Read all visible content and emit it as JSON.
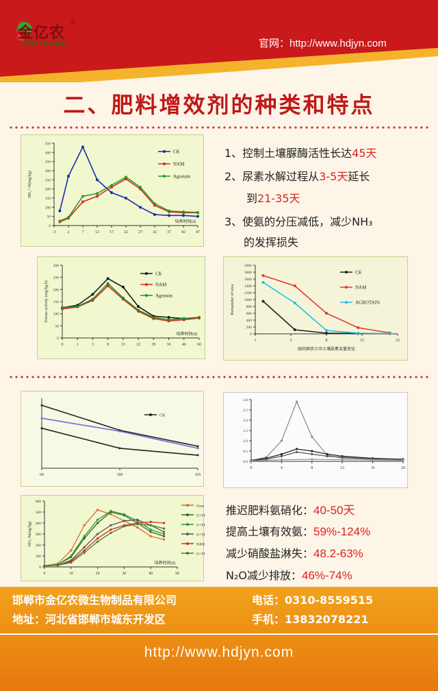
{
  "header": {
    "logo_cn": "金亿农",
    "logo_en": "JINYINONG",
    "logo_reg": "®",
    "official": "官网：http://www.hdjyn.com",
    "colors": {
      "red": "#c9191b",
      "yellow": "#f4b32a"
    }
  },
  "title": "二、肥料增效剂的种类和特点",
  "notes": [
    {
      "text": "1、控制土壤脲酶活性长达",
      "hl": "45天"
    },
    {
      "text": "2、尿素水解过程从",
      "hl": "3-5天",
      "after": "延长"
    },
    {
      "text": "",
      "hl": "21-35天",
      "pre": "到"
    },
    {
      "text": "3、使氨的分压减低，减少NH₃"
    },
    {
      "text": "的发挥损失"
    }
  ],
  "effects": [
    {
      "label": "推迟肥料氨硝化：",
      "value": "40-50天"
    },
    {
      "label": "提高土壤有效氨：",
      "value": "59%-124%"
    },
    {
      "label": "减少硝酸盐淋失：",
      "value": "48.2-63%"
    },
    {
      "label": "N₂O减少排放：",
      "value": "46%-74%"
    }
  ],
  "footer": {
    "company": "邯郸市金亿农微生物制品有限公司",
    "phone": "电话：0310-8559515",
    "address": "地址：河北省邯郸市城东开发区",
    "mobile": "手机：13832078221",
    "url": "http://www.hdjyn.com",
    "colors": {
      "bg": "#ee8c14"
    }
  },
  "chart_data": [
    {
      "type": "line",
      "ylabel": "NH₄⁺-N(mg/kg)",
      "xlabel": "培养时间(d)",
      "x": [
        -3,
        2,
        7,
        12,
        17,
        22,
        27,
        32,
        37,
        42,
        47
      ],
      "ylim": [
        0,
        450
      ],
      "series": [
        {
          "name": "CK",
          "color": "#1a2aa8",
          "points": [
            [
              -1,
              80
            ],
            [
              2,
              270
            ],
            [
              7,
              430
            ],
            [
              12,
              250
            ],
            [
              17,
              180
            ],
            [
              22,
              150
            ],
            [
              27,
              100
            ],
            [
              32,
              60
            ],
            [
              37,
              55
            ],
            [
              42,
              55
            ],
            [
              47,
              50
            ]
          ]
        },
        {
          "name": "NAM",
          "color": "#d82a20",
          "points": [
            [
              -1,
              20
            ],
            [
              2,
              40
            ],
            [
              7,
              130
            ],
            [
              12,
              160
            ],
            [
              17,
              210
            ],
            [
              22,
              255
            ],
            [
              27,
              200
            ],
            [
              32,
              110
            ],
            [
              37,
              75
            ],
            [
              42,
              70
            ],
            [
              47,
              70
            ]
          ]
        },
        {
          "name": "Agrotain",
          "color": "#2a9a2a",
          "points": [
            [
              -1,
              25
            ],
            [
              2,
              45
            ],
            [
              7,
              160
            ],
            [
              12,
              175
            ],
            [
              17,
              220
            ],
            [
              22,
              265
            ],
            [
              27,
              210
            ],
            [
              32,
              120
            ],
            [
              37,
              80
            ],
            [
              42,
              75
            ],
            [
              47,
              72
            ]
          ]
        }
      ],
      "yticks": [
        0,
        50,
        100,
        150,
        200,
        250,
        300,
        350,
        400,
        450
      ],
      "xticks": [
        "-3",
        "2",
        "7",
        "12",
        "17",
        "22",
        "27",
        "32",
        "37",
        "42",
        "47"
      ]
    },
    {
      "type": "line",
      "ylabel": "Urease activity (mg/kg.h)",
      "xlabel": "培养时间(d)",
      "xticks": [
        "0",
        "1",
        "3",
        "8",
        "15",
        "22",
        "29",
        "36",
        "46",
        "60"
      ],
      "ylim": [
        0,
        300
      ],
      "yticks": [
        0,
        50,
        100,
        150,
        200,
        250,
        300
      ],
      "series": [
        {
          "name": "CK",
          "color": "#1a1a1a",
          "points": [
            [
              0,
              125
            ],
            [
              1,
              135
            ],
            [
              2,
              180
            ],
            [
              3,
              245
            ],
            [
              4,
              210
            ],
            [
              5,
              130
            ],
            [
              6,
              90
            ],
            [
              7,
              85
            ],
            [
              8,
              80
            ],
            [
              9,
              85
            ]
          ]
        },
        {
          "name": "NAM",
          "color": "#d82a20",
          "points": [
            [
              0,
              120
            ],
            [
              1,
              128
            ],
            [
              2,
              155
            ],
            [
              3,
              215
            ],
            [
              4,
              160
            ],
            [
              5,
              110
            ],
            [
              6,
              80
            ],
            [
              7,
              70
            ],
            [
              8,
              75
            ],
            [
              9,
              82
            ]
          ]
        },
        {
          "name": "Agrotain",
          "color": "#2a8a2a",
          "points": [
            [
              0,
              125
            ],
            [
              1,
              130
            ],
            [
              2,
              160
            ],
            [
              3,
              225
            ],
            [
              4,
              165
            ],
            [
              5,
              115
            ],
            [
              6,
              85
            ],
            [
              7,
              75
            ],
            [
              8,
              80
            ],
            [
              9,
              85
            ]
          ]
        }
      ]
    },
    {
      "type": "line",
      "ylabel": "Remainder of urea",
      "xlabel": "",
      "caption": "田间原状土中土壤尿素含量变化",
      "xticks": [
        "1",
        "3",
        "8",
        "15",
        "22"
      ],
      "ylim": [
        0,
        2000
      ],
      "yticks": [
        0,
        200,
        400,
        600,
        800,
        1000,
        1200,
        1400,
        1600,
        1800,
        2000
      ],
      "series": [
        {
          "name": "CK",
          "color": "#222222",
          "points": [
            [
              0,
              950
            ],
            [
              1,
              120
            ],
            [
              2,
              20
            ],
            [
              3,
              10
            ],
            [
              4,
              5
            ]
          ]
        },
        {
          "name": "NAM",
          "color": "#e03a30",
          "points": [
            [
              0,
              1700
            ],
            [
              1,
              1400
            ],
            [
              2,
              600
            ],
            [
              3,
              180
            ],
            [
              4,
              30
            ]
          ]
        },
        {
          "name": "AGROTAIN",
          "color": "#17c3e6",
          "points": [
            [
              0,
              1500
            ],
            [
              1,
              900
            ],
            [
              2,
              100
            ],
            [
              3,
              20
            ],
            [
              4,
              10
            ]
          ]
        }
      ]
    },
    {
      "type": "line",
      "ylabel": "",
      "xlabel": "",
      "xticks": [
        "60",
        "100",
        "105"
      ],
      "ylim": [
        0,
        70
      ],
      "series": [
        {
          "name": "CK",
          "color": "#222222",
          "points": [
            [
              0,
              63
            ],
            [
              1,
              38
            ],
            [
              2,
              22
            ]
          ]
        },
        {
          "name": "",
          "color": "#6a6ae0",
          "points": [
            [
              0,
              50
            ],
            [
              1,
              37
            ],
            [
              2,
              20
            ]
          ]
        },
        {
          "name": "",
          "color": "#222222",
          "points": [
            [
              0,
              40
            ],
            [
              1,
              20
            ],
            [
              2,
              13
            ]
          ]
        }
      ]
    },
    {
      "type": "line",
      "ylabel": "",
      "xlabel": "",
      "xticks": [
        "0",
        "4",
        "8",
        "12",
        "16",
        "20"
      ],
      "yticks": [
        "0.0",
        "0.5",
        "1.0",
        "1.5",
        "2.0",
        "2.5",
        "3.0"
      ],
      "ylim": [
        0,
        3
      ],
      "series": [
        {
          "name": "",
          "color": "#888888",
          "points": [
            [
              0,
              0.05
            ],
            [
              2,
              0.2
            ],
            [
              4,
              1.0
            ],
            [
              6,
              2.9
            ],
            [
              8,
              1.2
            ],
            [
              10,
              0.3
            ],
            [
              12,
              0.15
            ],
            [
              16,
              0.1
            ],
            [
              20,
              0.1
            ]
          ]
        },
        {
          "name": "",
          "color": "#222222",
          "points": [
            [
              0,
              0.05
            ],
            [
              2,
              0.15
            ],
            [
              4,
              0.35
            ],
            [
              6,
              0.6
            ],
            [
              8,
              0.5
            ],
            [
              10,
              0.35
            ],
            [
              12,
              0.25
            ],
            [
              16,
              0.15
            ],
            [
              20,
              0.1
            ]
          ]
        },
        {
          "name": "",
          "color": "#555555",
          "points": [
            [
              0,
              0.05
            ],
            [
              2,
              0.1
            ],
            [
              4,
              0.25
            ],
            [
              6,
              0.45
            ],
            [
              8,
              0.35
            ],
            [
              10,
              0.25
            ],
            [
              12,
              0.2
            ],
            [
              16,
              0.12
            ],
            [
              20,
              0.08
            ]
          ]
        },
        {
          "name": "",
          "color": "#999999",
          "points": [
            [
              0,
              0.02
            ],
            [
              4,
              0.08
            ],
            [
              8,
              0.1
            ],
            [
              12,
              0.08
            ],
            [
              16,
              0.06
            ],
            [
              20,
              0.05
            ]
          ]
        }
      ]
    },
    {
      "type": "line",
      "ylabel": "NO₃-N(mg/kg)",
      "xlabel": "培养时间(d)",
      "xticks": [
        "0",
        "10",
        "20",
        "30",
        "40",
        "50"
      ],
      "yticks": [
        0,
        100,
        200,
        300,
        400,
        500,
        600
      ],
      "ylim": [
        0,
        600
      ],
      "series": [
        {
          "name": "Urea",
          "color": "#d86a30",
          "points": [
            [
              0,
              10
            ],
            [
              5,
              30
            ],
            [
              10,
              150
            ],
            [
              15,
              380
            ],
            [
              20,
              520
            ],
            [
              25,
              480
            ],
            [
              30,
              420
            ],
            [
              35,
              360
            ],
            [
              40,
              280
            ],
            [
              45,
              250
            ]
          ]
        },
        {
          "name": "U+TEI",
          "color": "#2a6a2a",
          "points": [
            [
              0,
              10
            ],
            [
              5,
              20
            ],
            [
              10,
              90
            ],
            [
              15,
              260
            ],
            [
              20,
              400
            ],
            [
              25,
              500
            ],
            [
              30,
              470
            ],
            [
              35,
              400
            ],
            [
              40,
              320
            ],
            [
              45,
              280
            ]
          ]
        },
        {
          "name": "U+TEII",
          "color": "#2a9a2a",
          "points": [
            [
              0,
              10
            ],
            [
              5,
              20
            ],
            [
              10,
              100
            ],
            [
              15,
              280
            ],
            [
              20,
              430
            ],
            [
              25,
              510
            ],
            [
              30,
              480
            ],
            [
              35,
              420
            ],
            [
              40,
              340
            ],
            [
              45,
              300
            ]
          ]
        },
        {
          "name": "U+TEIII",
          "color": "#555555",
          "points": [
            [
              0,
              10
            ],
            [
              5,
              15
            ],
            [
              10,
              60
            ],
            [
              15,
              180
            ],
            [
              20,
              300
            ],
            [
              25,
              380
            ],
            [
              30,
              420
            ],
            [
              35,
              430
            ],
            [
              40,
              380
            ],
            [
              45,
              320
            ]
          ]
        },
        {
          "name": "NAM",
          "color": "#d82a20",
          "points": [
            [
              0,
              10
            ],
            [
              5,
              15
            ],
            [
              10,
              50
            ],
            [
              15,
              150
            ],
            [
              20,
              260
            ],
            [
              25,
              340
            ],
            [
              30,
              380
            ],
            [
              35,
              400
            ],
            [
              40,
              410
            ],
            [
              45,
              400
            ]
          ]
        },
        {
          "name": "U+TEII",
          "color": "#4a7a3a",
          "points": [
            [
              0,
              10
            ],
            [
              5,
              15
            ],
            [
              10,
              40
            ],
            [
              15,
              130
            ],
            [
              20,
              230
            ],
            [
              25,
              310
            ],
            [
              30,
              370
            ],
            [
              35,
              390
            ],
            [
              40,
              380
            ],
            [
              45,
              350
            ]
          ]
        }
      ]
    }
  ]
}
